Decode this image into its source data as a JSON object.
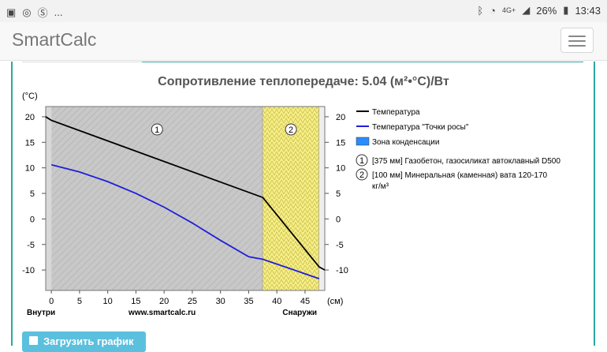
{
  "status_bar": {
    "left_dots": "...",
    "battery": "26%",
    "time": "13:43",
    "network": "4G+"
  },
  "app": {
    "brand": "SmartCalc"
  },
  "chart_title": "Сопротивление теплопередаче: 5.04 (м²•°С)/Вт",
  "chart_data": {
    "type": "line",
    "ylabel": "(°С)",
    "xlabel": "(см)",
    "xlim": [
      0,
      48
    ],
    "ylim": [
      -14,
      22
    ],
    "x_ticks": [
      0,
      5,
      10,
      15,
      20,
      25,
      30,
      35,
      40,
      45
    ],
    "y_ticks": [
      20,
      15,
      10,
      5,
      0,
      -5,
      -10
    ],
    "layers": [
      {
        "number": "1",
        "from": 0,
        "to": 37.5,
        "label": "[375 мм] Газобетон, газосиликат автоклавный D500"
      },
      {
        "number": "2",
        "from": 37.5,
        "to": 47.5,
        "label": "[100 мм] Минеральная (каменная) вата 120-170 кг/м³"
      }
    ],
    "series": [
      {
        "name": "Температура",
        "color": "#000000",
        "x": [
          -1,
          0,
          37.5,
          47.5,
          48.5
        ],
        "y": [
          20,
          19.3,
          4.2,
          -9.4,
          -10
        ]
      },
      {
        "name": "Температура \"Точки росы\"",
        "color": "#1f1fdc",
        "x": [
          0,
          5,
          10,
          15,
          20,
          25,
          30,
          35,
          37.5,
          42,
          47.5
        ],
        "y": [
          10.6,
          9.2,
          7.3,
          5.0,
          2.3,
          -0.8,
          -4.2,
          -7.4,
          -7.9,
          -9.6,
          -11.7
        ]
      }
    ],
    "condensation_zone": {
      "label": "Зона конденсации",
      "color": "#2a8cff"
    },
    "bottom_labels": {
      "inside": "Внутри",
      "site": "www.smartcalc.ru",
      "outside": "Снаружи"
    }
  },
  "button": {
    "label": "Загрузить график"
  },
  "colors": {
    "accent": "#2aa9a0",
    "info_button": "#5bc0de"
  }
}
